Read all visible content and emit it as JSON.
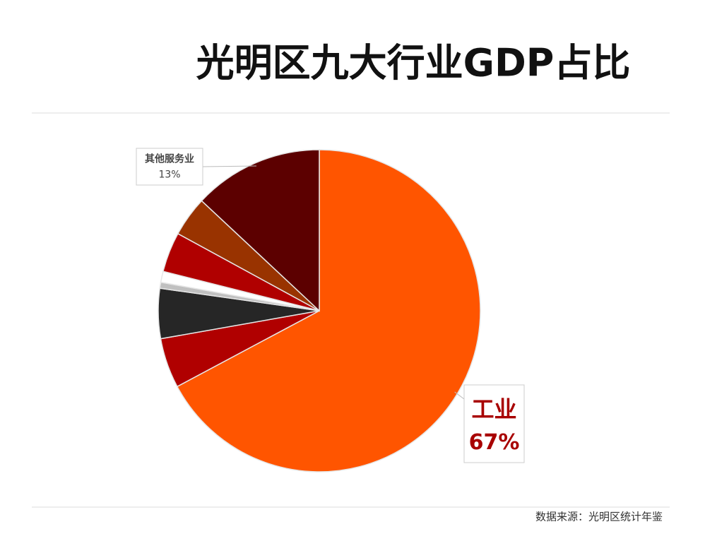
{
  "chart_data": {
    "type": "pie",
    "title": "光明区九大行业GDP占比",
    "categories": [
      "工业",
      null,
      null,
      null,
      null,
      null,
      null,
      "其他服务业"
    ],
    "values": [
      67,
      5,
      5,
      0.6,
      1.1,
      4,
      4,
      13
    ],
    "value_labels": [
      "67%",
      null,
      null,
      null,
      null,
      null,
      null,
      "13%"
    ],
    "colors": [
      "#ff5500",
      "#b00000",
      "#262626",
      "#c0c0c0",
      "#ffffff",
      "#b00000",
      "#993300",
      "#5c0000"
    ],
    "source": "数据来源：光明区统计年鉴"
  }
}
